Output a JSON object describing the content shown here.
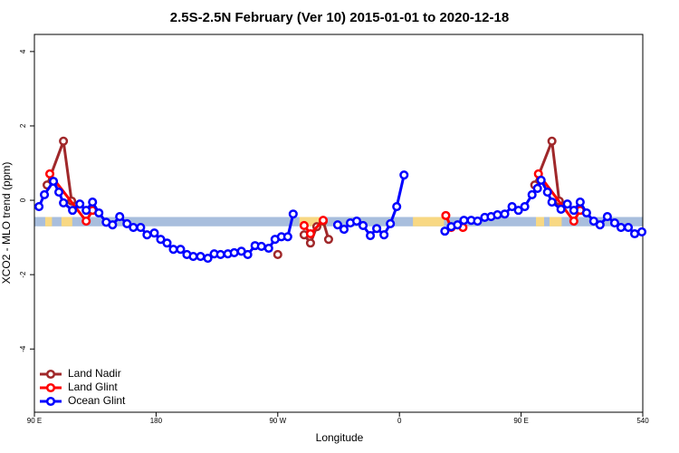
{
  "chart_data": {
    "type": "line",
    "title": "2.5S-2.5N February (Ver 10)   2015-01-01 to 2020-12-18",
    "x_label": "Longitude",
    "y_label": "XCO2 - MLO trend (ppm)",
    "xlim": [
      90,
      540
    ],
    "ylim": [
      -5.7,
      4.46
    ],
    "xticks": [
      {
        "value": 90,
        "label": "90 E"
      },
      180,
      {
        "value": 270,
        "label": "90 W"
      },
      {
        "value": 360,
        "label": "0"
      },
      {
        "value": 450,
        "label": "90 E"
      },
      540
    ],
    "yticks": [
      -4,
      -2,
      0,
      2,
      4
    ],
    "legend": "bottomleft",
    "band": {
      "ylim": [
        -0.7,
        -0.45
      ],
      "color": "#a8bedd",
      "highlight_color": "#f8d883",
      "highlights": [
        [
          98,
          103
        ],
        [
          110,
          118
        ],
        [
          286,
          306
        ],
        [
          370,
          393
        ],
        [
          461,
          467
        ],
        [
          471,
          480
        ]
      ]
    },
    "series": [
      {
        "name": "Land Nadir",
        "color": "#a0282a",
        "x": [
          99.4,
          111.5,
          117.5,
          200,
          270.0,
          280,
          289.5,
          294.2,
          298.9,
          303.6,
          307.6,
          400,
          460.1,
          472.8,
          478.2
        ],
        "values": [
          0.41,
          1.59,
          -0.02,
          null,
          -1.46,
          null,
          -0.93,
          -1.15,
          -0.71,
          -0.56,
          -1.05,
          null,
          0.41,
          1.59,
          -0.02
        ]
      },
      {
        "name": "Land Glint",
        "color": "#ff0000",
        "x": [
          101.4,
          128.3,
          133.0,
          200,
          289.5,
          294.2,
          303.6,
          350,
          394.3,
          398.3,
          407.0,
          430,
          462.8,
          489.0,
          493.7
        ],
        "values": [
          0.71,
          -0.56,
          -0.27,
          null,
          -0.68,
          -0.9,
          -0.54,
          null,
          -0.41,
          -0.73,
          -0.73,
          null,
          0.71,
          -0.56,
          -0.27
        ]
      },
      {
        "name": "Ocean Glint",
        "color": "#0000ff",
        "x": [
          93.4,
          97.4,
          104.1,
          108.1,
          111.5,
          118.2,
          123.6,
          128.3,
          133.0,
          137.7,
          143.1,
          147.8,
          153.1,
          158.5,
          163.2,
          168.6,
          173.3,
          178.7,
          183.4,
          188.1,
          192.8,
          198.1,
          202.8,
          207.5,
          212.9,
          218.3,
          223.0,
          227.7,
          233.1,
          237.8,
          243.1,
          247.8,
          253.2,
          257.9,
          263.3,
          268.0,
          272.7,
          277.4,
          281.4,
          300,
          314.3,
          319.0,
          323.7,
          328.4,
          333.1,
          338.5,
          343.2,
          348.6,
          353.3,
          358.0,
          363.4,
          380,
          393.6,
          398.3,
          403.0,
          407.7,
          413.1,
          417.8,
          423.1,
          427.8,
          432.5,
          437.9,
          443.3,
          448.0,
          452.7,
          458.1,
          462.1,
          464.8,
          469.5,
          472.8,
          479.5,
          484.2,
          489.0,
          493.7,
          498.4,
          503.7,
          508.4,
          513.8,
          519.2,
          523.9,
          529.3,
          534.0,
          539.3
        ],
        "values": [
          -0.17,
          0.15,
          0.51,
          0.22,
          -0.07,
          -0.27,
          -0.1,
          -0.27,
          -0.05,
          -0.34,
          -0.59,
          -0.66,
          -0.44,
          -0.63,
          -0.73,
          -0.73,
          -0.93,
          -0.88,
          -1.05,
          -1.15,
          -1.32,
          -1.32,
          -1.46,
          -1.51,
          -1.51,
          -1.56,
          -1.44,
          -1.46,
          -1.44,
          -1.41,
          -1.37,
          -1.46,
          -1.22,
          -1.24,
          -1.29,
          -1.05,
          -0.98,
          -0.98,
          -0.37,
          null,
          -0.66,
          -0.78,
          -0.61,
          -0.56,
          -0.68,
          -0.95,
          -0.76,
          -0.93,
          -0.63,
          -0.17,
          0.68,
          null,
          -0.83,
          -0.71,
          -0.66,
          -0.54,
          -0.54,
          -0.56,
          -0.46,
          -0.44,
          -0.39,
          -0.37,
          -0.17,
          -0.27,
          -0.17,
          0.15,
          0.32,
          0.54,
          0.22,
          -0.05,
          -0.24,
          -0.1,
          -0.27,
          -0.05,
          -0.34,
          -0.56,
          -0.66,
          -0.44,
          -0.61,
          -0.73,
          -0.73,
          -0.9,
          -0.85
        ]
      }
    ]
  }
}
